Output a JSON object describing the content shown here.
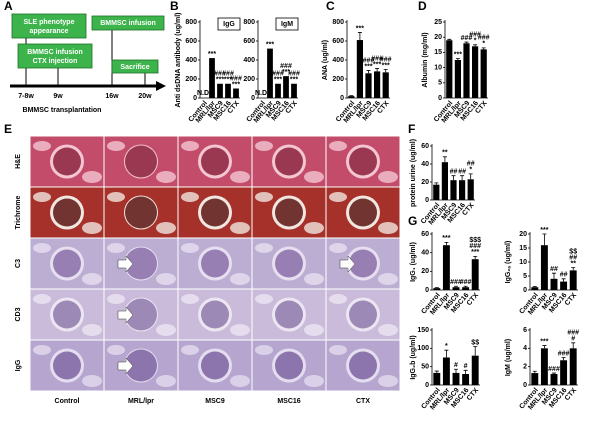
{
  "panel_labels": [
    "A",
    "B",
    "C",
    "D",
    "E",
    "F",
    "G"
  ],
  "timeline": {
    "boxes": [
      {
        "label": [
          "SLE phenotype",
          "appearance"
        ]
      },
      {
        "label": [
          "BMMSC infusion"
        ]
      },
      {
        "label": [
          "BMMSC infusion",
          "CTX injection"
        ]
      },
      {
        "label": [
          "Sacrifice"
        ]
      }
    ],
    "ticks": [
      "7-8w",
      "9w",
      "16w",
      "20w"
    ],
    "axis_label": "BMMSC transplantation"
  },
  "histology": {
    "row_labels": [
      "H&E",
      "Trichrome",
      "C3",
      "CD3",
      "IgG"
    ],
    "column_labels": [
      "Control",
      "MRL/lpr",
      "MSC9",
      "MSC16",
      "CTX"
    ]
  },
  "chart_data": [
    {
      "type": "bar",
      "title": "IgG",
      "ylabel": "Anti dsDNA antibody (ug/ml)",
      "categories": [
        "Control",
        "MRL/lpr",
        "MSC9",
        "MSC16",
        "CTX"
      ],
      "values": [
        null,
        420,
        150,
        150,
        100
      ],
      "value_labels": [
        "N.D.",
        null,
        null,
        null,
        null
      ],
      "sig": [
        null,
        [
          "***"
        ],
        [
          "###",
          "***"
        ],
        [
          "###",
          "***"
        ],
        [
          "###",
          "***"
        ]
      ],
      "ylim": [
        0,
        800
      ],
      "yticks": [
        0,
        200,
        400,
        600,
        800
      ],
      "color": "#000000"
    },
    {
      "type": "bar",
      "title": "IgM",
      "categories": [
        "Control",
        "MRL/lpr",
        "MSC9",
        "MSC16",
        "CTX"
      ],
      "values": [
        null,
        520,
        150,
        230,
        150
      ],
      "value_labels": [
        "N.D.",
        null,
        null,
        null,
        null
      ],
      "sig": [
        null,
        [
          "***"
        ],
        [
          "###",
          "***"
        ],
        [
          "###",
          "***"
        ],
        [
          "###",
          "***"
        ]
      ],
      "ylim": [
        0,
        800
      ],
      "yticks": [
        0,
        200,
        400,
        600,
        800
      ],
      "color": "#000000"
    },
    {
      "type": "bar",
      "ylabel": "ANA (ug/ml)",
      "categories": [
        "Control",
        "MRL/lpr",
        "MSC9",
        "MSC16",
        "CTX"
      ],
      "values": [
        20,
        610,
        260,
        280,
        270
      ],
      "errors": [
        5,
        80,
        30,
        30,
        30
      ],
      "sig": [
        null,
        [
          "***"
        ],
        [
          "###",
          "***"
        ],
        [
          "###",
          "***"
        ],
        [
          "###",
          "***"
        ]
      ],
      "ylim": [
        0,
        800
      ],
      "yticks": [
        0,
        200,
        400,
        600,
        800
      ],
      "color": "#000000"
    },
    {
      "type": "bar",
      "ylabel": "Albumin (mg/ml)",
      "categories": [
        "Control",
        "MRL/lpr",
        "MSC9",
        "MSC16",
        "CTX"
      ],
      "values": [
        19,
        12.5,
        18,
        17,
        16
      ],
      "errors": [
        0.3,
        0.5,
        0.4,
        0.5,
        0.5
      ],
      "sig": [
        null,
        [
          "***"
        ],
        [
          "###"
        ],
        [
          "###",
          "*"
        ],
        [
          "###",
          "*"
        ]
      ],
      "ylim": [
        0,
        25
      ],
      "yticks": [
        0,
        5,
        10,
        15,
        20,
        25
      ],
      "color": "#000000"
    },
    {
      "type": "bar",
      "ylabel": "protein urine (ug/ml)",
      "categories": [
        "Control",
        "MRL/lpr",
        "MSC9",
        "MSC16",
        "CTX"
      ],
      "values": [
        17,
        42,
        22,
        22,
        23
      ],
      "errors": [
        2,
        6,
        5,
        5,
        6
      ],
      "sig": [
        null,
        [
          "**"
        ],
        [
          "##"
        ],
        [
          "##"
        ],
        [
          "##",
          "*"
        ]
      ],
      "ylim": [
        0,
        60
      ],
      "yticks": [
        0,
        20,
        40,
        60
      ],
      "color": "#000000"
    },
    {
      "type": "bar",
      "ylabel": "IgG₁ (ug/ml)",
      "categories": [
        "Control",
        "MRL/lpr",
        "MSC9",
        "MSC16",
        "CTX"
      ],
      "values": [
        2,
        48,
        3,
        3,
        33
      ],
      "errors": [
        0.5,
        3,
        1,
        1,
        3
      ],
      "sig": [
        null,
        [
          "***"
        ],
        [
          "###"
        ],
        [
          "###"
        ],
        [
          "$$$",
          "###",
          "***"
        ]
      ],
      "ylim": [
        0,
        60
      ],
      "yticks": [
        0,
        20,
        40,
        60
      ],
      "color": "#000000"
    },
    {
      "type": "bar",
      "ylabel": "IgG₂ₐ (ug/ml)",
      "categories": [
        "Control",
        "MRL/lpr",
        "MSC9",
        "MSC16",
        "CTX"
      ],
      "values": [
        1,
        16,
        4,
        3,
        7
      ],
      "errors": [
        0.3,
        4,
        2,
        1,
        1
      ],
      "sig": [
        null,
        [
          "***"
        ],
        [
          "##"
        ],
        [
          "##"
        ],
        [
          "$$",
          "##",
          "**"
        ]
      ],
      "ylim": [
        0,
        20
      ],
      "yticks": [
        0,
        5,
        10,
        15,
        20
      ],
      "color": "#000000"
    },
    {
      "type": "bar",
      "ylabel": "IgG₂b (ug/ml)",
      "categories": [
        "Control",
        "MRL/lpr",
        "MSC9",
        "MSC16",
        "CTX"
      ],
      "values": [
        33,
        75,
        33,
        30,
        80
      ],
      "errors": [
        5,
        20,
        10,
        10,
        25
      ],
      "sig": [
        null,
        [
          "*"
        ],
        [
          "#"
        ],
        [
          "#"
        ],
        [
          "$$"
        ]
      ],
      "ylim": [
        0,
        150
      ],
      "yticks": [
        0,
        50,
        100,
        150
      ],
      "color": "#000000"
    },
    {
      "type": "bar",
      "ylabel": "IgM (ug/ml)",
      "categories": [
        "Control",
        "MRL/lpr",
        "MSC9",
        "MSC16",
        "CTX"
      ],
      "values": [
        1.3,
        4,
        1.2,
        2.7,
        4
      ],
      "errors": [
        0.2,
        0.3,
        0.1,
        0.3,
        0.6
      ],
      "sig": [
        null,
        [
          "***"
        ],
        [
          "###"
        ],
        [
          "###"
        ],
        [
          "###",
          "#"
        ]
      ],
      "ylim": [
        0,
        6
      ],
      "yticks": [
        0,
        2,
        4,
        6
      ],
      "color": "#000000"
    }
  ]
}
